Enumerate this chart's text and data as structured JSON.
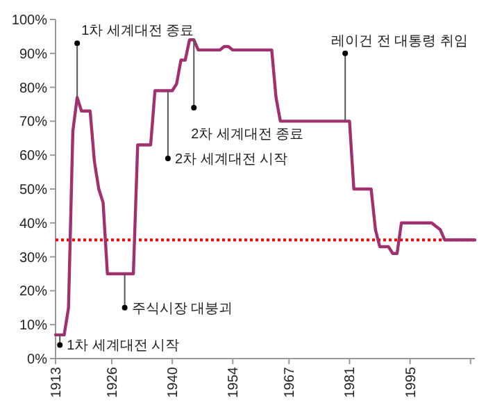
{
  "chart_data": {
    "type": "line",
    "xlim": [
      1913,
      2010
    ],
    "xticks": [
      1913,
      1926,
      1940,
      1954,
      1967,
      1981,
      1995,
      {
        "value": 2009,
        "label": null
      }
    ],
    "ylim": [
      0,
      100
    ],
    "yticks": [
      {
        "value": 0,
        "label": "0%"
      },
      {
        "value": 10,
        "label": "10%"
      },
      {
        "value": 20,
        "label": "20%"
      },
      {
        "value": 30,
        "label": "30%"
      },
      {
        "value": 40,
        "label": "40%"
      },
      {
        "value": 50,
        "label": "50%"
      },
      {
        "value": 60,
        "label": "60%"
      },
      {
        "value": 70,
        "label": "70%"
      },
      {
        "value": 80,
        "label": "80%"
      },
      {
        "value": 90,
        "label": "90%"
      },
      {
        "value": 100,
        "label": "100%"
      }
    ],
    "grid": false,
    "marker": "none",
    "series": [
      {
        "color": "#a0306e",
        "x": [
          1913,
          1915,
          1916,
          1917,
          1918,
          1919,
          1921,
          1922,
          1923,
          1924,
          1925,
          1931,
          1932,
          1935,
          1936,
          1940,
          1941,
          1942,
          1943,
          1944,
          1945,
          1946,
          1951,
          1952,
          1953,
          1954,
          1963,
          1964,
          1965,
          1981,
          1982,
          1986,
          1987,
          1988,
          1990,
          1991,
          1992,
          1993,
          2000,
          2001,
          2002,
          2003,
          2010
        ],
        "values": [
          7,
          7,
          15,
          67,
          77,
          73,
          73,
          58,
          50,
          46,
          25,
          25,
          63,
          63,
          79,
          79,
          81,
          88,
          88,
          94,
          94,
          91,
          91,
          92,
          92,
          91,
          91,
          77,
          70,
          70,
          50,
          50,
          38,
          33,
          33,
          31,
          31,
          40,
          40,
          39,
          38,
          35,
          35
        ]
      }
    ],
    "ref_lines": [
      {
        "axis": "y",
        "value": 35,
        "color": "#ff0000",
        "line_style": "dotted"
      }
    ],
    "annotations": [
      {
        "text": "1차 세계대전 시작",
        "x": 1914,
        "y": 4
      },
      {
        "text": "1차 세계대전 종료",
        "x": 1918,
        "y": 93
      },
      {
        "text": "주식시장 대붕괴",
        "x": 1929,
        "y": 15
      },
      {
        "text": "2차 세계대전 시작",
        "x": 1939,
        "y": 59
      },
      {
        "text": "2차 세계대전 종료",
        "x": 1945,
        "y": 74
      },
      {
        "text": "레이건 전 대통령 취임",
        "x": 1980,
        "y": 90
      }
    ]
  }
}
